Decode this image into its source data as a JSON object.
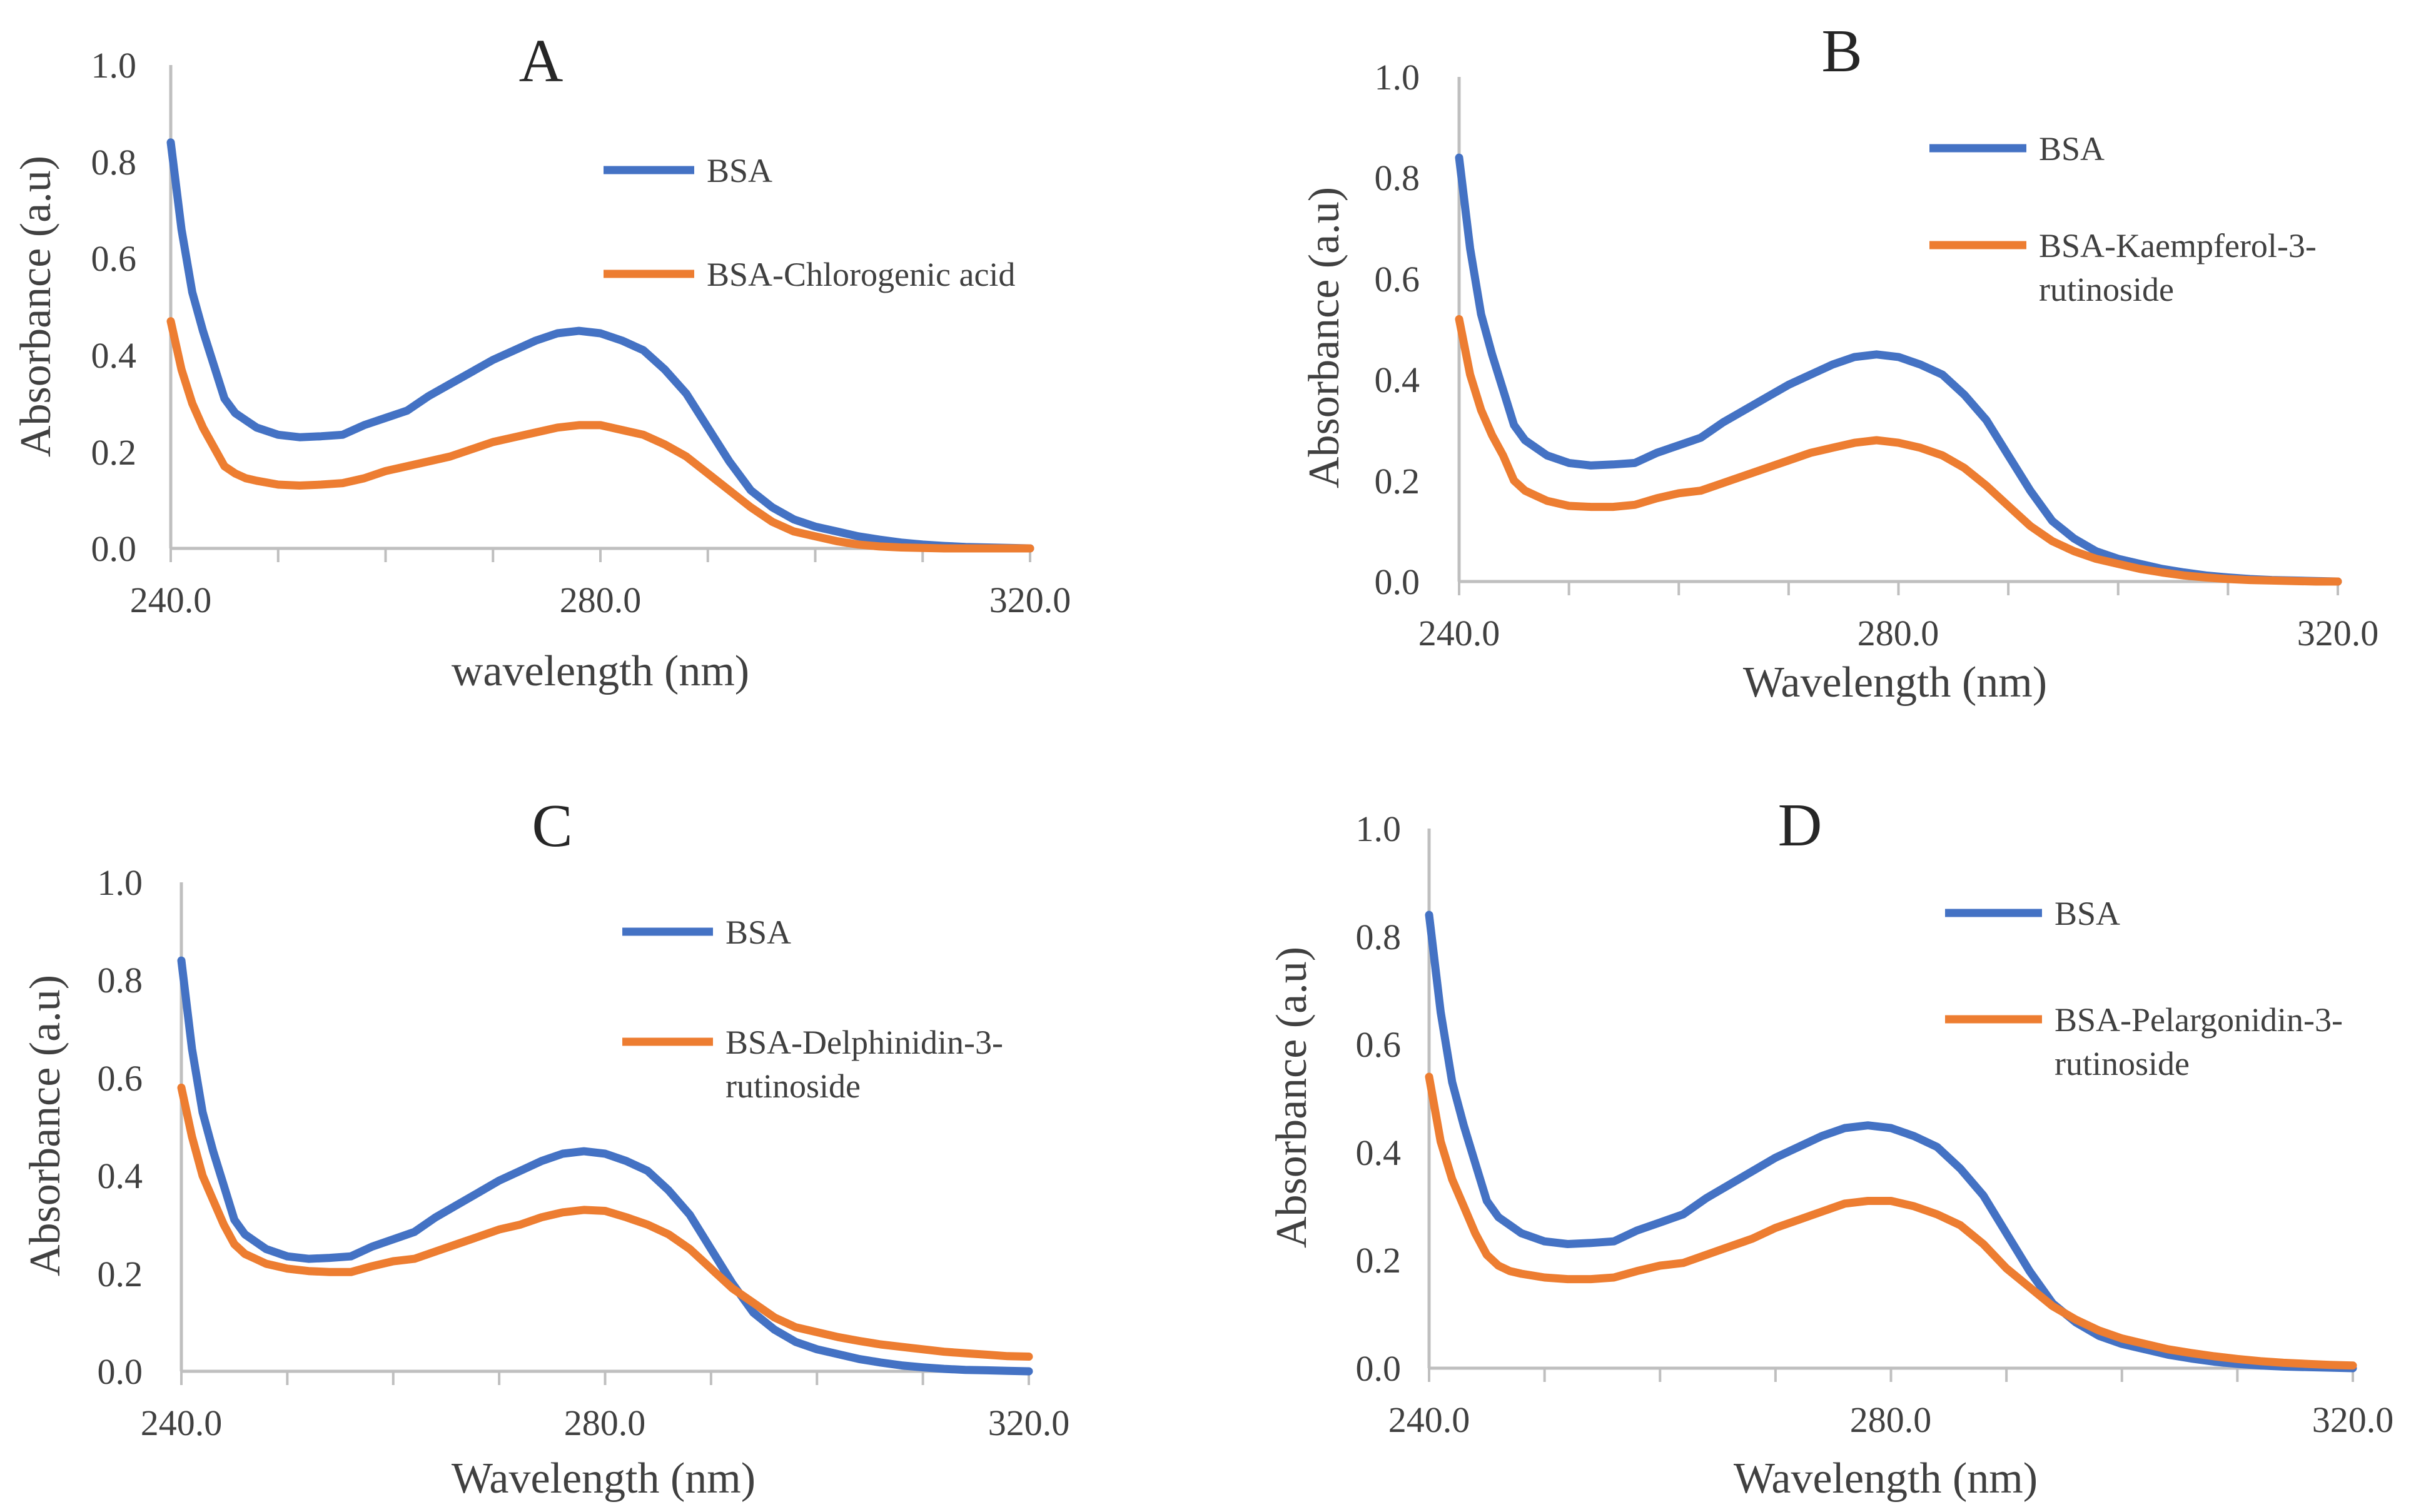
{
  "figure": {
    "colors": {
      "bsa": "#4472C4",
      "complex": "#ED7D31",
      "axis": "#BFBFBF",
      "text": "#404040"
    }
  },
  "chart_data": [
    {
      "type": "line",
      "panel": "A",
      "xlabel": "wavelength (nm)",
      "ylabel": "Absorbance (a.u)",
      "xlim": [
        240,
        320
      ],
      "ylim": [
        0,
        1
      ],
      "x_ticks": [
        "240.0",
        "280.0",
        "320.0"
      ],
      "y_ticks": [
        "0.0",
        "0.2",
        "0.4",
        "0.6",
        "0.8",
        "1.0"
      ],
      "legend": [
        "BSA",
        "BSA-Chlorogenic acid"
      ],
      "x": [
        240,
        241,
        242,
        243,
        244,
        245,
        246,
        247,
        248,
        250,
        252,
        254,
        256,
        258,
        260,
        262,
        264,
        266,
        268,
        270,
        272,
        274,
        276,
        278,
        280,
        282,
        284,
        286,
        288,
        290,
        292,
        294,
        296,
        298,
        300,
        302,
        304,
        306,
        308,
        310,
        312,
        314,
        316,
        318,
        320
      ],
      "series": [
        {
          "name": "BSA",
          "values": [
            0.84,
            0.66,
            0.53,
            0.45,
            0.38,
            0.31,
            0.28,
            0.265,
            0.25,
            0.235,
            0.23,
            0.232,
            0.235,
            0.255,
            0.27,
            0.285,
            0.315,
            0.34,
            0.365,
            0.39,
            0.41,
            0.43,
            0.445,
            0.45,
            0.445,
            0.43,
            0.41,
            0.37,
            0.32,
            0.25,
            0.18,
            0.12,
            0.085,
            0.06,
            0.045,
            0.035,
            0.025,
            0.018,
            0.012,
            0.008,
            0.005,
            0.003,
            0.002,
            0.001,
            0.0
          ]
        },
        {
          "name": "BSA-Chlorogenic acid",
          "values": [
            0.47,
            0.37,
            0.3,
            0.25,
            0.21,
            0.17,
            0.155,
            0.145,
            0.14,
            0.132,
            0.13,
            0.132,
            0.135,
            0.145,
            0.16,
            0.17,
            0.18,
            0.19,
            0.205,
            0.22,
            0.23,
            0.24,
            0.25,
            0.255,
            0.255,
            0.245,
            0.235,
            0.215,
            0.19,
            0.155,
            0.12,
            0.085,
            0.055,
            0.035,
            0.025,
            0.015,
            0.008,
            0.004,
            0.002,
            0.001,
            0.0,
            0.0,
            0.0,
            0.0,
            0.0
          ]
        }
      ]
    },
    {
      "type": "line",
      "panel": "B",
      "xlabel": "Wavelength (nm)",
      "ylabel": "Absorbance (a.u)",
      "xlim": [
        240,
        320
      ],
      "ylim": [
        0,
        1
      ],
      "x_ticks": [
        "240.0",
        "280.0",
        "320.0"
      ],
      "y_ticks": [
        "0.0",
        "0.2",
        "0.4",
        "0.6",
        "0.8",
        "1.0"
      ],
      "legend": [
        "BSA",
        "BSA-Kaempferol-3-rutinoside"
      ],
      "x": [
        240,
        241,
        242,
        243,
        244,
        245,
        246,
        247,
        248,
        250,
        252,
        254,
        256,
        258,
        260,
        262,
        264,
        266,
        268,
        270,
        272,
        274,
        276,
        278,
        280,
        282,
        284,
        286,
        288,
        290,
        292,
        294,
        296,
        298,
        300,
        302,
        304,
        306,
        308,
        310,
        312,
        314,
        316,
        318,
        320
      ],
      "series": [
        {
          "name": "BSA",
          "values": [
            0.84,
            0.66,
            0.53,
            0.45,
            0.38,
            0.31,
            0.28,
            0.265,
            0.25,
            0.235,
            0.23,
            0.232,
            0.235,
            0.255,
            0.27,
            0.285,
            0.315,
            0.34,
            0.365,
            0.39,
            0.41,
            0.43,
            0.445,
            0.45,
            0.445,
            0.43,
            0.41,
            0.37,
            0.32,
            0.25,
            0.18,
            0.12,
            0.085,
            0.06,
            0.045,
            0.035,
            0.025,
            0.018,
            0.012,
            0.008,
            0.005,
            0.003,
            0.002,
            0.001,
            0.0
          ]
        },
        {
          "name": "BSA-Kaempferol-3-rutinoside",
          "values": [
            0.52,
            0.41,
            0.34,
            0.29,
            0.25,
            0.2,
            0.18,
            0.17,
            0.16,
            0.15,
            0.148,
            0.148,
            0.152,
            0.165,
            0.175,
            0.18,
            0.195,
            0.21,
            0.225,
            0.24,
            0.255,
            0.265,
            0.275,
            0.28,
            0.275,
            0.265,
            0.25,
            0.225,
            0.19,
            0.15,
            0.11,
            0.08,
            0.06,
            0.045,
            0.035,
            0.025,
            0.018,
            0.012,
            0.008,
            0.005,
            0.003,
            0.002,
            0.001,
            0.0,
            0.0
          ]
        }
      ]
    },
    {
      "type": "line",
      "panel": "C",
      "xlabel": "Wavelength (nm)",
      "ylabel": "Absorbance (a.u)",
      "xlim": [
        240,
        320
      ],
      "ylim": [
        0,
        1
      ],
      "x_ticks": [
        "240.0",
        "280.0",
        "320.0"
      ],
      "y_ticks": [
        "0.0",
        "0.2",
        "0.4",
        "0.6",
        "0.8",
        "1.0"
      ],
      "legend": [
        "BSA",
        "BSA-Delphinidin-3-rutinoside"
      ],
      "x": [
        240,
        241,
        242,
        243,
        244,
        245,
        246,
        247,
        248,
        250,
        252,
        254,
        256,
        258,
        260,
        262,
        264,
        266,
        268,
        270,
        272,
        274,
        276,
        278,
        280,
        282,
        284,
        286,
        288,
        290,
        292,
        294,
        296,
        298,
        300,
        302,
        304,
        306,
        308,
        310,
        312,
        314,
        316,
        318,
        320
      ],
      "series": [
        {
          "name": "BSA",
          "values": [
            0.84,
            0.66,
            0.53,
            0.45,
            0.38,
            0.31,
            0.28,
            0.265,
            0.25,
            0.235,
            0.23,
            0.232,
            0.235,
            0.255,
            0.27,
            0.285,
            0.315,
            0.34,
            0.365,
            0.39,
            0.41,
            0.43,
            0.445,
            0.45,
            0.445,
            0.43,
            0.41,
            0.37,
            0.32,
            0.25,
            0.18,
            0.12,
            0.085,
            0.06,
            0.045,
            0.035,
            0.025,
            0.018,
            0.012,
            0.008,
            0.005,
            0.003,
            0.002,
            0.001,
            0.0
          ]
        },
        {
          "name": "BSA-Delphinidin-3-rutinoside",
          "values": [
            0.58,
            0.48,
            0.4,
            0.35,
            0.3,
            0.26,
            0.24,
            0.23,
            0.22,
            0.21,
            0.205,
            0.203,
            0.203,
            0.215,
            0.225,
            0.23,
            0.245,
            0.26,
            0.275,
            0.29,
            0.3,
            0.315,
            0.325,
            0.33,
            0.328,
            0.315,
            0.3,
            0.28,
            0.25,
            0.21,
            0.17,
            0.14,
            0.11,
            0.09,
            0.08,
            0.07,
            0.062,
            0.055,
            0.05,
            0.045,
            0.04,
            0.037,
            0.034,
            0.031,
            0.03
          ]
        }
      ]
    },
    {
      "type": "line",
      "panel": "D",
      "xlabel": "Wavelength (nm)",
      "ylabel": "Absorbance (a.u)",
      "xlim": [
        240,
        320
      ],
      "ylim": [
        0,
        1
      ],
      "x_ticks": [
        "240.0",
        "280.0",
        "320.0"
      ],
      "y_ticks": [
        "0.0",
        "0.2",
        "0.4",
        "0.6",
        "0.8",
        "1.0"
      ],
      "legend": [
        "BSA",
        "BSA-Pelargonidin-3-rutinoside"
      ],
      "x": [
        240,
        241,
        242,
        243,
        244,
        245,
        246,
        247,
        248,
        250,
        252,
        254,
        256,
        258,
        260,
        262,
        264,
        266,
        268,
        270,
        272,
        274,
        276,
        278,
        280,
        282,
        284,
        286,
        288,
        290,
        292,
        294,
        296,
        298,
        300,
        302,
        304,
        306,
        308,
        310,
        312,
        314,
        316,
        318,
        320
      ],
      "series": [
        {
          "name": "BSA",
          "values": [
            0.84,
            0.66,
            0.53,
            0.45,
            0.38,
            0.31,
            0.28,
            0.265,
            0.25,
            0.235,
            0.23,
            0.232,
            0.235,
            0.255,
            0.27,
            0.285,
            0.315,
            0.34,
            0.365,
            0.39,
            0.41,
            0.43,
            0.445,
            0.45,
            0.445,
            0.43,
            0.41,
            0.37,
            0.32,
            0.25,
            0.18,
            0.12,
            0.085,
            0.06,
            0.045,
            0.035,
            0.025,
            0.018,
            0.012,
            0.008,
            0.005,
            0.003,
            0.002,
            0.001,
            0.0
          ]
        },
        {
          "name": "BSA-Pelargonidin-3-rutinoside",
          "values": [
            0.54,
            0.42,
            0.35,
            0.3,
            0.25,
            0.21,
            0.19,
            0.18,
            0.175,
            0.168,
            0.165,
            0.165,
            0.168,
            0.18,
            0.19,
            0.195,
            0.21,
            0.225,
            0.24,
            0.26,
            0.275,
            0.29,
            0.305,
            0.31,
            0.31,
            0.3,
            0.285,
            0.265,
            0.23,
            0.185,
            0.15,
            0.115,
            0.09,
            0.07,
            0.055,
            0.045,
            0.035,
            0.028,
            0.022,
            0.017,
            0.013,
            0.01,
            0.008,
            0.006,
            0.005
          ]
        }
      ]
    }
  ]
}
